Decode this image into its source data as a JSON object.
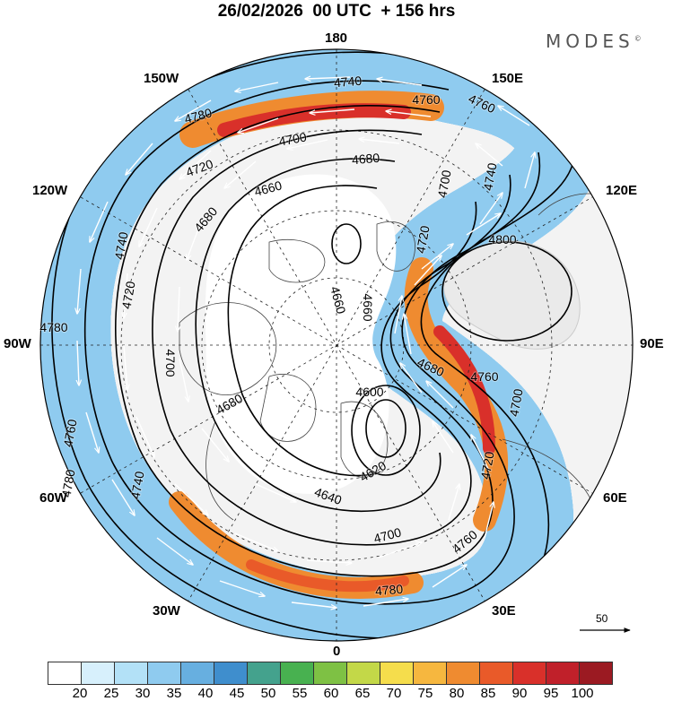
{
  "header": {
    "title": "26/02/2026  00 UTC  + 156 hrs",
    "brand": "MODES",
    "brand_mark": "©"
  },
  "longitude_labels": {
    "top": "180",
    "upper_left": "150W",
    "upper_right": "150E",
    "mid_upper_left": "120W",
    "mid_upper_right": "120E",
    "left": "90W",
    "right": "90E",
    "mid_lower_left": "60W",
    "mid_lower_right": "60E",
    "lower_left": "30W",
    "lower_right": "30E",
    "bottom": "0"
  },
  "reference_vector": {
    "value": "50"
  },
  "contour_labels": [
    "4780",
    "4740",
    "4760",
    "4760",
    "4700",
    "4680",
    "4720",
    "4700",
    "4740",
    "4660",
    "4680",
    "4740",
    "4720",
    "4800",
    "4720",
    "4660",
    "4660",
    "4700",
    "4780",
    "4680",
    "4600",
    "4680",
    "4760",
    "4720",
    "4740",
    "4760",
    "4620",
    "4780",
    "4640",
    "4700",
    "4760",
    "4780",
    "4700"
  ],
  "colorbar": {
    "ticks": [
      "20",
      "25",
      "30",
      "35",
      "40",
      "45",
      "50",
      "55",
      "60",
      "65",
      "70",
      "75",
      "80",
      "85",
      "90",
      "95",
      "100"
    ],
    "colors": [
      "#ffffff",
      "#d7f0fc",
      "#b3e1f7",
      "#8fcbef",
      "#67afe0",
      "#3f8ecd",
      "#44a28d",
      "#48b150",
      "#7ec144",
      "#c3d848",
      "#f5dd4c",
      "#f6b73f",
      "#ef8b30",
      "#e95a29",
      "#d9302a",
      "#c0202a",
      "#9b1a22"
    ]
  },
  "legend": {
    "quantity": "wind speed",
    "direction": "arrows show wind direction"
  }
}
